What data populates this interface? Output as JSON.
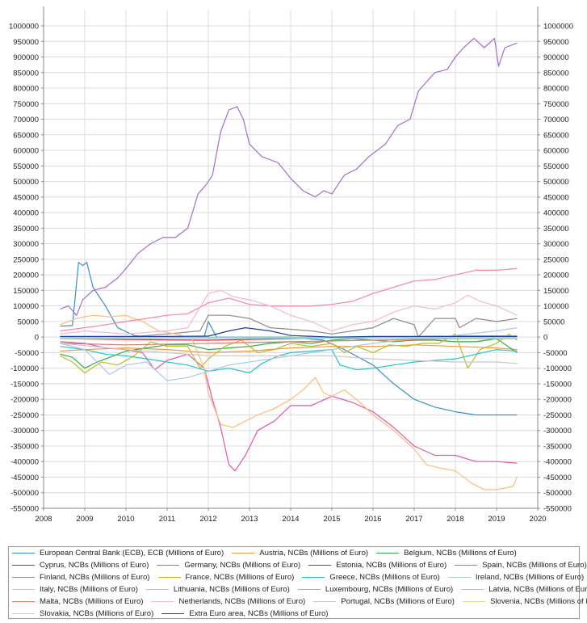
{
  "chart_data": {
    "type": "line",
    "title": "",
    "xlabel": "",
    "ylabel": "",
    "xlim": [
      2008,
      2020
    ],
    "ylim": [
      -550000,
      1000000
    ],
    "grid": true,
    "legend_position": "bottom",
    "x_ticks": [
      "2008",
      "2009",
      "2010",
      "2011",
      "2012",
      "2013",
      "2014",
      "2015",
      "2016",
      "2017",
      "2018",
      "2019",
      "2020"
    ],
    "y_ticks": [
      "1000000",
      "950000",
      "900000",
      "850000",
      "800000",
      "750000",
      "700000",
      "650000",
      "600000",
      "550000",
      "500000",
      "450000",
      "400000",
      "350000",
      "300000",
      "250000",
      "200000",
      "150000",
      "100000",
      "50000",
      "0",
      "-50000",
      "-100000",
      "-150000",
      "-200000",
      "-250000",
      "-300000",
      "-350000",
      "-400000",
      "-450000",
      "-500000",
      "-550000"
    ],
    "series": [
      {
        "name": "European Central Bank (ECB), ECB (Millions of Euro)",
        "color": "#3b8fc4",
        "x": [
          2008.4,
          2008.7,
          2008.85,
          2008.95,
          2009.05,
          2009.2,
          2009.5,
          2009.8,
          2010.2,
          2010.6,
          2011.0,
          2011.5,
          2011.9,
          2012.0,
          2012.2,
          2012.5,
          2013.0,
          2014.0,
          2014.8,
          2015.3,
          2016.0,
          2016.5,
          2017.0,
          2017.5,
          2018.0,
          2018.5,
          2019.0,
          2019.5
        ],
        "y": [
          35000,
          37000,
          240000,
          230000,
          240000,
          160000,
          100000,
          30000,
          5000,
          0,
          0,
          0,
          0,
          50000,
          0,
          0,
          0,
          0,
          -10000,
          -40000,
          -90000,
          -150000,
          -200000,
          -225000,
          -240000,
          -250000,
          -250000,
          -250000
        ]
      },
      {
        "name": "Austria, NCBs (Millions of Euro)",
        "color": "#f79640",
        "x": [
          2008.4,
          2009.0,
          2010.0,
          2011.0,
          2012.0,
          2013.0,
          2014.0,
          2015.0,
          2016.0,
          2017.0,
          2018.0,
          2019.0,
          2019.5
        ],
        "y": [
          -45000,
          -40000,
          -35000,
          -40000,
          -50000,
          -45000,
          -35000,
          -30000,
          -30000,
          -25000,
          -30000,
          -35000,
          -40000
        ]
      },
      {
        "name": "Belgium, NCBs (Millions of Euro)",
        "color": "#2eac46",
        "x": [
          2008.4,
          2008.7,
          2009.0,
          2009.3,
          2009.7,
          2010.0,
          2010.5,
          2011.0,
          2011.5,
          2012.0,
          2012.5,
          2013.0,
          2013.5,
          2014.0,
          2014.5,
          2015.0,
          2015.5,
          2016.0,
          2016.5,
          2017.0,
          2017.5,
          2018.0,
          2018.5,
          2019.0,
          2019.5
        ],
        "y": [
          -55000,
          -65000,
          -100000,
          -80000,
          -60000,
          -45000,
          -35000,
          -25000,
          -25000,
          -40000,
          -35000,
          -30000,
          -20000,
          -15000,
          -20000,
          -10000,
          -5000,
          -10000,
          -15000,
          -10000,
          -10000,
          -15000,
          -15000,
          -5000,
          -50000
        ]
      },
      {
        "name": "Cyprus, NCBs (Millions of Euro)",
        "color": "#d8202f",
        "x": [
          2008.4,
          2010.0,
          2012.0,
          2014.0,
          2016.0,
          2018.0,
          2019.5
        ],
        "y": [
          -5000,
          -8000,
          -10000,
          -5000,
          0,
          3000,
          3000
        ]
      },
      {
        "name": "Germany, NCBs (Millions of Euro)",
        "color": "#a46dcc",
        "x": [
          2008.4,
          2008.6,
          2008.8,
          2008.95,
          2009.2,
          2009.5,
          2009.8,
          2010.0,
          2010.3,
          2010.6,
          2010.9,
          2011.2,
          2011.5,
          2011.75,
          2011.95,
          2012.1,
          2012.3,
          2012.5,
          2012.7,
          2012.85,
          2013.0,
          2013.3,
          2013.7,
          2014.0,
          2014.3,
          2014.6,
          2014.8,
          2015.0,
          2015.3,
          2015.6,
          2015.9,
          2016.3,
          2016.6,
          2016.9,
          2017.1,
          2017.5,
          2017.8,
          2018.0,
          2018.2,
          2018.45,
          2018.7,
          2018.95,
          2019.05,
          2019.2,
          2019.5
        ],
        "y": [
          90000,
          100000,
          70000,
          120000,
          150000,
          160000,
          190000,
          220000,
          270000,
          300000,
          320000,
          320000,
          350000,
          460000,
          490000,
          520000,
          660000,
          730000,
          740000,
          700000,
          620000,
          580000,
          560000,
          510000,
          470000,
          450000,
          470000,
          460000,
          520000,
          540000,
          580000,
          620000,
          680000,
          700000,
          790000,
          850000,
          860000,
          900000,
          930000,
          960000,
          930000,
          960000,
          870000,
          930000,
          945000
        ]
      },
      {
        "name": "Estonia, NCBs (Millions of Euro)",
        "color": "#8b4a2c",
        "x": [
          2008.4,
          2019.5
        ],
        "y": [
          -2000,
          0
        ]
      },
      {
        "name": "Spain, NCBs (Millions of Euro)",
        "color": "#e156b4",
        "x": [
          2008.4,
          2009.0,
          2009.5,
          2010.0,
          2010.4,
          2010.7,
          2011.0,
          2011.5,
          2011.9,
          2012.1,
          2012.3,
          2012.5,
          2012.65,
          2012.9,
          2013.2,
          2013.6,
          2014.0,
          2014.5,
          2015.0,
          2015.5,
          2016.0,
          2016.5,
          2017.0,
          2017.5,
          2018.0,
          2018.5,
          2019.0,
          2019.5
        ],
        "y": [
          -15000,
          -20000,
          -35000,
          -40000,
          -50000,
          -105000,
          -75000,
          -55000,
          -100000,
          -200000,
          -290000,
          -410000,
          -430000,
          -380000,
          -300000,
          -270000,
          -220000,
          -220000,
          -190000,
          -210000,
          -240000,
          -290000,
          -350000,
          -380000,
          -380000,
          -400000,
          -400000,
          -405000
        ]
      },
      {
        "name": "Finland, NCBs (Millions of Euro)",
        "color": "#8c8c8c",
        "x": [
          2008.4,
          2010.0,
          2011.0,
          2011.8,
          2012.0,
          2012.5,
          2013.0,
          2013.5,
          2014.0,
          2014.5,
          2015.0,
          2015.5,
          2016.0,
          2016.5,
          2017.0,
          2017.1,
          2017.5,
          2018.0,
          2018.1,
          2018.5,
          2019.0,
          2019.5
        ],
        "y": [
          -2000,
          0,
          10000,
          20000,
          70000,
          70000,
          60000,
          30000,
          25000,
          20000,
          10000,
          20000,
          30000,
          60000,
          40000,
          0,
          60000,
          60000,
          30000,
          60000,
          50000,
          60000
        ]
      },
      {
        "name": "France, NCBs (Millions of Euro)",
        "color": "#bcbd22",
        "x": [
          2008.4,
          2008.7,
          2009.0,
          2009.4,
          2009.8,
          2010.2,
          2010.6,
          2011.0,
          2011.5,
          2011.8,
          2012.0,
          2012.4,
          2012.8,
          2013.2,
          2013.6,
          2014.0,
          2014.5,
          2015.0,
          2015.3,
          2015.6,
          2016.0,
          2016.4,
          2016.8,
          2017.2,
          2017.6,
          2018.0,
          2018.3,
          2018.6,
          2019.0,
          2019.3,
          2019.5
        ],
        "y": [
          -60000,
          -80000,
          -115000,
          -80000,
          -90000,
          -60000,
          -15000,
          -30000,
          -30000,
          -100000,
          -70000,
          -30000,
          -10000,
          -50000,
          -40000,
          -20000,
          -30000,
          -20000,
          -50000,
          -30000,
          -50000,
          -25000,
          -30000,
          -20000,
          -20000,
          10000,
          -100000,
          -40000,
          -20000,
          10000,
          -10000
        ]
      },
      {
        "name": "Greece, NCBs (Millions of Euro)",
        "color": "#22c4cf",
        "x": [
          2008.4,
          2009.0,
          2009.5,
          2010.0,
          2010.5,
          2011.0,
          2011.5,
          2012.0,
          2012.5,
          2013.0,
          2013.3,
          2013.7,
          2014.0,
          2014.5,
          2015.0,
          2015.2,
          2015.6,
          2016.0,
          2016.5,
          2017.0,
          2017.5,
          2018.0,
          2018.5,
          2019.0,
          2019.5
        ],
        "y": [
          -30000,
          -40000,
          -55000,
          -60000,
          -70000,
          -80000,
          -90000,
          -110000,
          -100000,
          -115000,
          -85000,
          -60000,
          -50000,
          -45000,
          -40000,
          -90000,
          -105000,
          -100000,
          -90000,
          -80000,
          -75000,
          -70000,
          -55000,
          -40000,
          -45000
        ]
      },
      {
        "name": "Ireland, NCBs (Millions of Euro)",
        "color": "#aec7e8",
        "x": [
          2008.4,
          2009.0,
          2009.3,
          2009.6,
          2010.0,
          2010.5,
          2011.0,
          2011.5,
          2012.0,
          2012.5,
          2013.0,
          2014.0,
          2015.0,
          2016.0,
          2017.0,
          2018.0,
          2019.0,
          2019.5
        ],
        "y": [
          -20000,
          -40000,
          -80000,
          -120000,
          -90000,
          -80000,
          -140000,
          -130000,
          -110000,
          -90000,
          -80000,
          -60000,
          -40000,
          -20000,
          -5000,
          5000,
          20000,
          30000
        ]
      },
      {
        "name": "Italy, NCBs (Millions of Euro)",
        "color": "#ffbb78",
        "x": [
          2008.4,
          2008.8,
          2009.2,
          2009.6,
          2010.0,
          2010.4,
          2010.8,
          2011.2,
          2011.6,
          2011.9,
          2012.0,
          2012.3,
          2012.6,
          2012.9,
          2013.2,
          2013.6,
          2014.0,
          2014.3,
          2014.6,
          2014.8,
          2015.0,
          2015.3,
          2015.6,
          2016.0,
          2016.5,
          2017.0,
          2017.3,
          2017.6,
          2018.0,
          2018.4,
          2018.7,
          2019.0,
          2019.4,
          2019.5
        ],
        "y": [
          40000,
          60000,
          70000,
          65000,
          70000,
          50000,
          20000,
          10000,
          -5000,
          -100000,
          -180000,
          -280000,
          -290000,
          -270000,
          -250000,
          -230000,
          -200000,
          -170000,
          -130000,
          -180000,
          -190000,
          -170000,
          -200000,
          -250000,
          -300000,
          -360000,
          -410000,
          -420000,
          -430000,
          -470000,
          -490000,
          -490000,
          -480000,
          -450000
        ]
      },
      {
        "name": "Lithuania, NCBs (Millions of Euro)",
        "color": "#98df8a",
        "x": [
          2008.4,
          2019.5
        ],
        "y": [
          -1000,
          -1000
        ]
      },
      {
        "name": "Luxembourg, NCBs (Millions of Euro)",
        "color": "#f7879a",
        "x": [
          2008.4,
          2009.0,
          2009.5,
          2010.0,
          2010.5,
          2011.0,
          2011.5,
          2012.0,
          2012.5,
          2013.0,
          2013.5,
          2014.0,
          2014.5,
          2015.0,
          2015.5,
          2016.0,
          2016.5,
          2017.0,
          2017.5,
          2018.0,
          2018.5,
          2019.0,
          2019.5
        ],
        "y": [
          20000,
          30000,
          40000,
          50000,
          60000,
          70000,
          75000,
          110000,
          125000,
          105000,
          100000,
          100000,
          100000,
          105000,
          115000,
          140000,
          160000,
          180000,
          185000,
          200000,
          215000,
          215000,
          220000
        ]
      },
      {
        "name": "Latvia, NCBs (Millions of Euro)",
        "color": "#c5b0d5",
        "x": [
          2008.4,
          2019.5
        ],
        "y": [
          0,
          -1000
        ]
      },
      {
        "name": "Malta, NCBs (Millions of Euro)",
        "color": "#e07a6a",
        "x": [
          2008.4,
          2010.0,
          2012.0,
          2014.0,
          2016.0,
          2018.0,
          2019.5
        ],
        "y": [
          -20000,
          -25000,
          -20000,
          -15000,
          -10000,
          -5000,
          -5000
        ]
      },
      {
        "name": "Netherlands, NCBs (Millions of Euro)",
        "color": "#f7b6d2",
        "x": [
          2008.4,
          2009.0,
          2010.0,
          2011.0,
          2011.5,
          2012.0,
          2012.3,
          2012.6,
          2013.0,
          2013.5,
          2014.0,
          2014.5,
          2015.0,
          2015.5,
          2016.0,
          2016.5,
          2017.0,
          2017.5,
          2018.0,
          2018.3,
          2018.6,
          2019.0,
          2019.5
        ],
        "y": [
          10000,
          20000,
          10000,
          20000,
          30000,
          140000,
          150000,
          130000,
          120000,
          100000,
          70000,
          50000,
          20000,
          40000,
          50000,
          80000,
          100000,
          90000,
          110000,
          135000,
          115000,
          100000,
          70000
        ]
      },
      {
        "name": "Portugal, NCBs (Millions of Euro)",
        "color": "#c7c7c7",
        "x": [
          2008.4,
          2010.0,
          2011.0,
          2012.0,
          2013.0,
          2014.0,
          2015.0,
          2016.0,
          2017.0,
          2018.0,
          2019.0,
          2019.5
        ],
        "y": [
          -20000,
          -40000,
          -50000,
          -60000,
          -60000,
          -60000,
          -60000,
          -70000,
          -75000,
          -80000,
          -80000,
          -85000
        ]
      },
      {
        "name": "Slovenia, NCBs (Millions of Euro)",
        "color": "#dbdb8d",
        "x": [
          2008.4,
          2019.5
        ],
        "y": [
          -3000,
          -4000
        ]
      },
      {
        "name": "Slovakia, NCBs (Millions of Euro)",
        "color": "#9edae5",
        "x": [
          2008.4,
          2019.5
        ],
        "y": [
          -5000,
          -2000
        ]
      },
      {
        "name": "Extra Euro area, NCBs (Millions of Euro)",
        "color": "#1f3f9a",
        "x": [
          2008.4,
          2011.0,
          2012.0,
          2012.5,
          2012.9,
          2013.5,
          2014.0,
          2015.0,
          2016.0,
          2019.5
        ],
        "y": [
          2000,
          2000,
          3000,
          20000,
          30000,
          20000,
          5000,
          0,
          2000,
          2000
        ]
      }
    ]
  },
  "legend": {
    "rows": [
      [
        0,
        1,
        2
      ],
      [
        3,
        4,
        5,
        6
      ],
      [
        7,
        8,
        9,
        10
      ],
      [
        11,
        12,
        13,
        14
      ],
      [
        15,
        16,
        17,
        18
      ],
      [
        19,
        20
      ]
    ]
  }
}
